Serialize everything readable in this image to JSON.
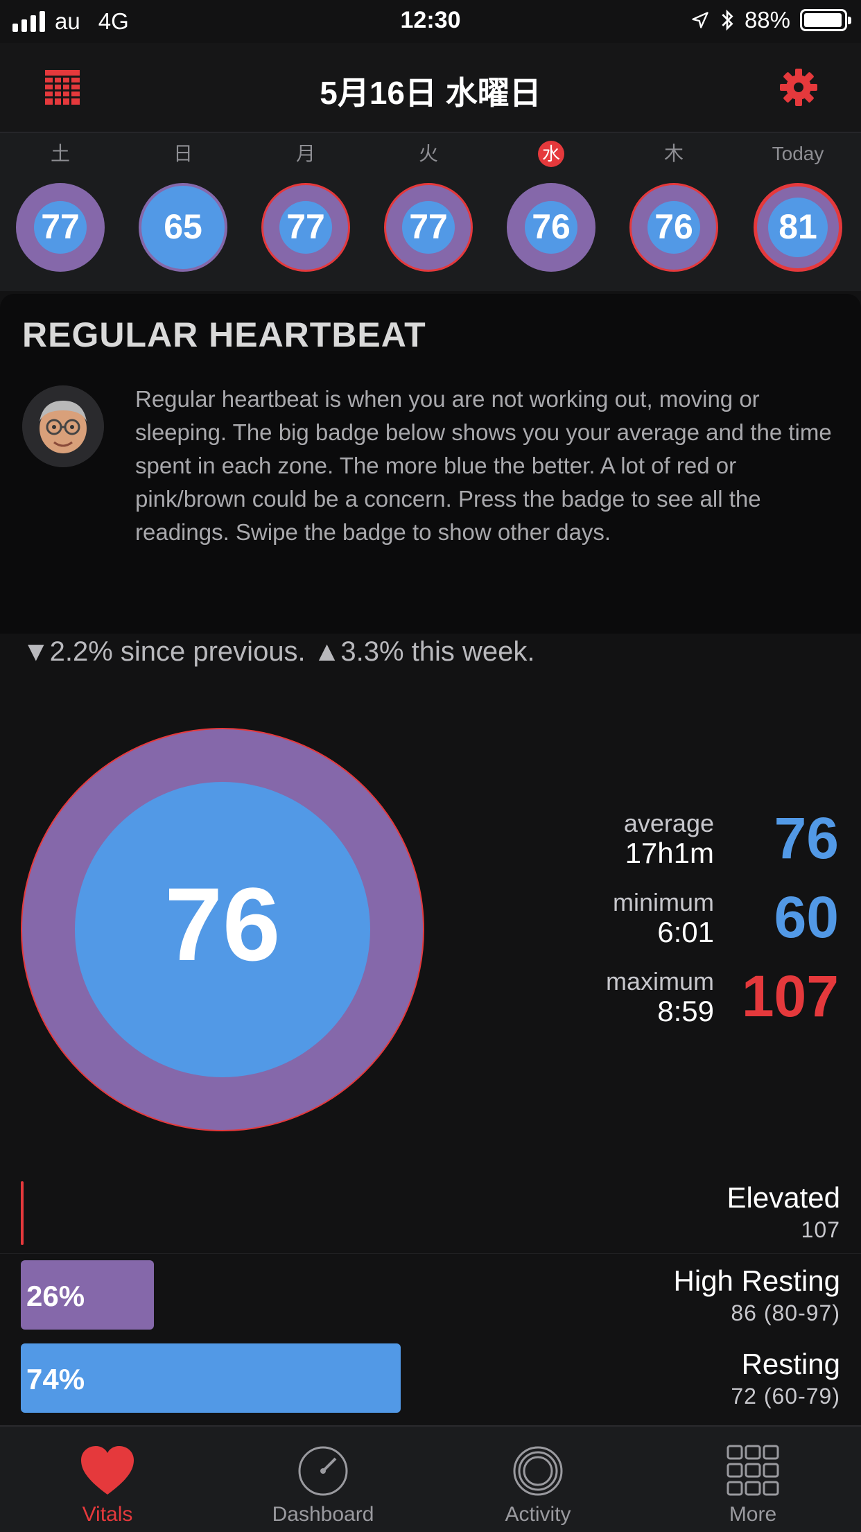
{
  "status_bar": {
    "carrier": "au",
    "network": "4G",
    "time": "12:30",
    "battery": "88%"
  },
  "nav": {
    "title": "5月16日 水曜日"
  },
  "week": [
    {
      "label": "土",
      "value": "77",
      "selected": false
    },
    {
      "label": "日",
      "value": "65",
      "selected": false
    },
    {
      "label": "月",
      "value": "77",
      "selected": false
    },
    {
      "label": "火",
      "value": "77",
      "selected": false
    },
    {
      "label": "水",
      "value": "76",
      "selected": true
    },
    {
      "label": "木",
      "value": "76",
      "selected": false
    },
    {
      "label": "Today",
      "value": "81",
      "selected": false
    }
  ],
  "card": {
    "title": "REGULAR HEARTBEAT",
    "text": "Regular heartbeat is when you are not working out, moving or sleeping. The big badge below shows you your average and the time spent in each zone. The more blue the better. A lot of red or pink/brown could be a concern. Press the badge to see all the readings. Swipe the badge to show other days."
  },
  "trend": "▼2.2% since previous. ▲3.3% this week.",
  "badge": {
    "value": "76"
  },
  "stats": [
    {
      "label": "average",
      "sub": "17h1m",
      "value": "76",
      "color": "#5299e6"
    },
    {
      "label": "minimum",
      "sub": "6:01",
      "value": "60",
      "color": "#5299e6"
    },
    {
      "label": "maximum",
      "sub": "8:59",
      "value": "107",
      "color": "#e5393c"
    }
  ],
  "zones": [
    {
      "name": "Elevated",
      "value": "107",
      "percent": "",
      "fraction": 0.0,
      "color": "#e5393c"
    },
    {
      "name": "High Resting",
      "value": "86 (80-97)",
      "percent": "26%",
      "fraction": 0.26,
      "color": "#8568aa"
    },
    {
      "name": "Resting",
      "value": "72 (60-79)",
      "percent": "74%",
      "fraction": 0.74,
      "color": "#5299e6"
    }
  ],
  "tabs": [
    {
      "label": "Vitals",
      "active": true
    },
    {
      "label": "Dashboard",
      "active": false
    },
    {
      "label": "Activity",
      "active": false
    },
    {
      "label": "More",
      "active": false
    }
  ],
  "colors": {
    "accent": "#e5393c",
    "blue": "#5299e6",
    "purple": "#8568aa"
  }
}
